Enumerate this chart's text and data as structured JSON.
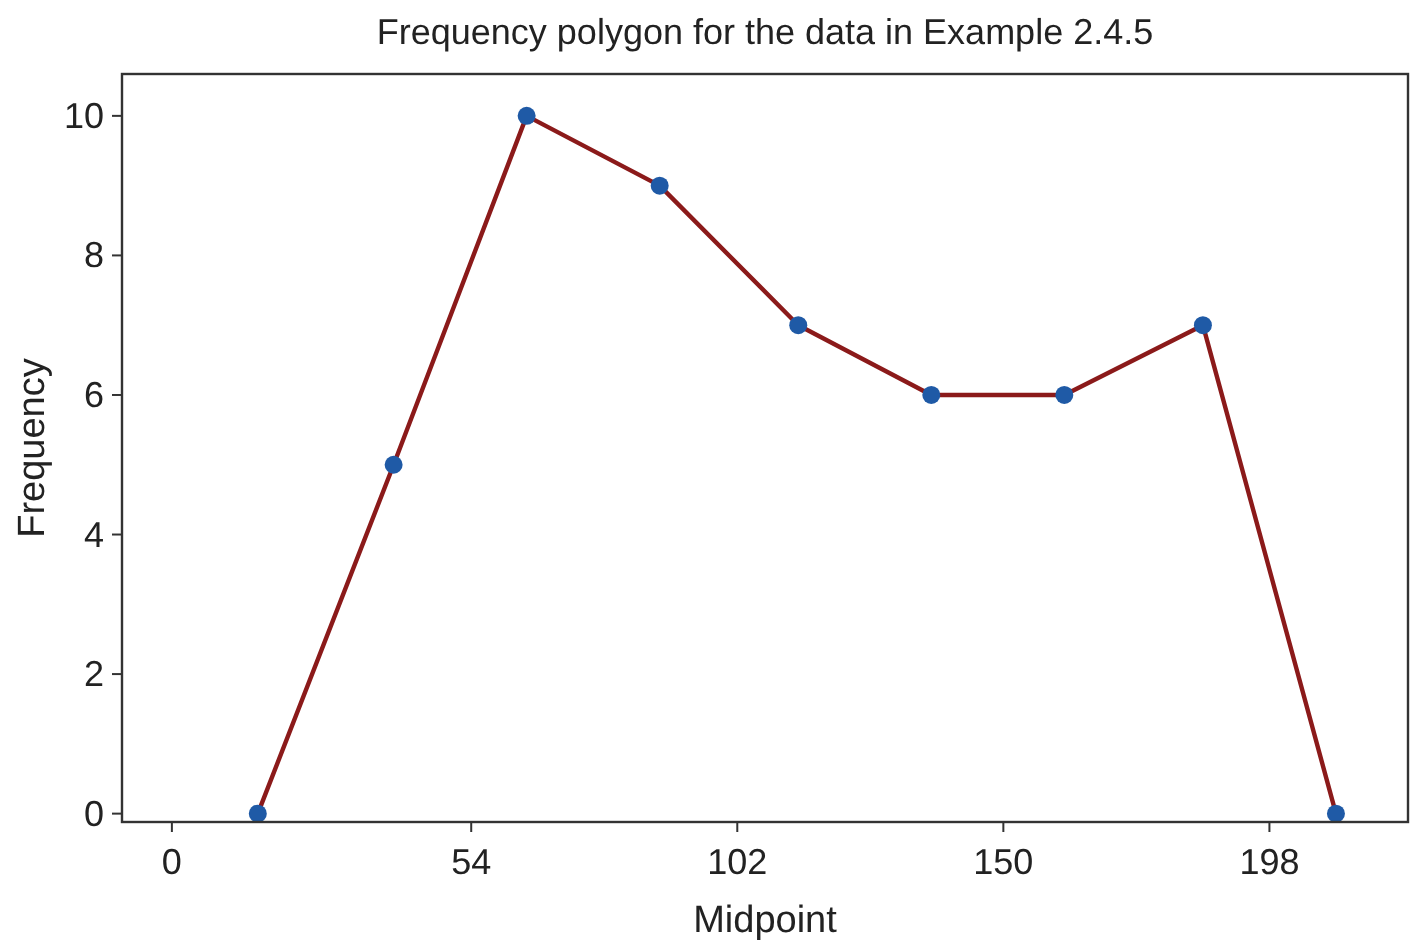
{
  "chart_data": {
    "type": "line",
    "title": "Frequency polygon for the data in Example 2.4.5",
    "xlabel": "Midpoint",
    "ylabel": "Frequency",
    "x": [
      15.5,
      40,
      64,
      88,
      113,
      137,
      161,
      186,
      210
    ],
    "series": [
      {
        "color": "#8b1a1a",
        "values": [
          0,
          5,
          10,
          9,
          7,
          6,
          6,
          7,
          0
        ]
      }
    ],
    "marker": "circle",
    "xlim": [
      -9,
      223
    ],
    "xticks": [
      0,
      54,
      102,
      150,
      198
    ],
    "ylim": [
      -0.12,
      10.6
    ],
    "yticks": [
      0,
      2,
      4,
      6,
      8,
      10
    ],
    "grid": false
  }
}
